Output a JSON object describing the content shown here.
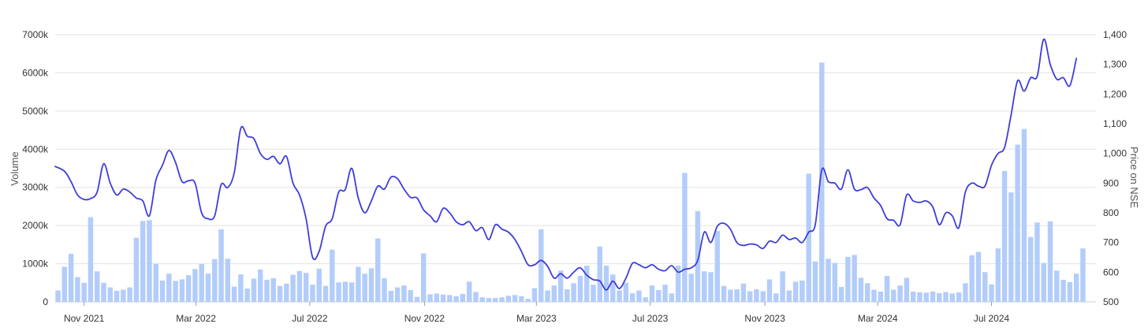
{
  "chart_data": {
    "type": "bar+line",
    "title": "",
    "xlabel": "",
    "ylabel_left": "Volume",
    "ylabel_right": "Price on NSE",
    "left_axis": {
      "min": 0,
      "max": 7000000,
      "ticks": [
        0,
        1000000,
        2000000,
        3000000,
        4000000,
        5000000,
        6000000,
        7000000
      ],
      "tick_labels": [
        "0",
        "1000k",
        "2000k",
        "3000k",
        "4000k",
        "5000k",
        "6000k",
        "7000k"
      ]
    },
    "right_axis": {
      "min": 500,
      "max": 1400,
      "ticks": [
        500,
        600,
        700,
        800,
        900,
        1000,
        1100,
        1200,
        1300,
        1400
      ],
      "tick_labels": [
        "500",
        "600",
        "700",
        "800",
        "900",
        "1,000",
        "1,100",
        "1,200",
        "1,300",
        "1,400"
      ]
    },
    "x_range": [
      "2021-10-01",
      "2024-10-21"
    ],
    "x_tick_labels": [
      {
        "date": "2021-11-01",
        "label": "Nov 2021"
      },
      {
        "date": "2022-03-01",
        "label": "Mar 2022"
      },
      {
        "date": "2022-07-01",
        "label": "Jul 2022"
      },
      {
        "date": "2022-11-01",
        "label": "Nov 2022"
      },
      {
        "date": "2023-03-01",
        "label": "Mar 2023"
      },
      {
        "date": "2023-07-01",
        "label": "Jul 2023"
      },
      {
        "date": "2023-11-01",
        "label": "Nov 2023"
      },
      {
        "date": "2024-03-01",
        "label": "Mar 2024"
      },
      {
        "date": "2024-07-01",
        "label": "Jul 2024"
      }
    ],
    "grid": true,
    "colors": {
      "volume": "#b3cdfa",
      "price": "#3f3ddb",
      "grid": "#e3e3e3"
    },
    "volume_series": {
      "name": "Volume",
      "start_date": "2021-10-04",
      "interval": "weekly",
      "values": [
        300000,
        920000,
        1260000,
        650000,
        500000,
        2220000,
        800000,
        500000,
        380000,
        290000,
        320000,
        380000,
        1680000,
        2120000,
        2140000,
        1000000,
        560000,
        740000,
        550000,
        590000,
        700000,
        860000,
        990000,
        740000,
        1120000,
        1900000,
        1130000,
        400000,
        720000,
        350000,
        610000,
        850000,
        580000,
        620000,
        420000,
        480000,
        710000,
        810000,
        760000,
        450000,
        870000,
        420000,
        1370000,
        510000,
        530000,
        510000,
        920000,
        740000,
        880000,
        1660000,
        620000,
        290000,
        380000,
        430000,
        310000,
        130000,
        1270000,
        200000,
        220000,
        190000,
        180000,
        150000,
        210000,
        530000,
        260000,
        120000,
        100000,
        100000,
        120000,
        160000,
        180000,
        150000,
        80000,
        360000,
        1900000,
        300000,
        430000,
        820000,
        330000,
        490000,
        680000,
        950000,
        450000,
        1450000,
        950000,
        720000,
        300000,
        500000,
        230000,
        300000,
        120000,
        430000,
        310000,
        450000,
        220000,
        950000,
        3380000,
        740000,
        2380000,
        800000,
        780000,
        1860000,
        420000,
        320000,
        330000,
        480000,
        280000,
        330000,
        280000,
        590000,
        220000,
        800000,
        300000,
        530000,
        560000,
        3360000,
        1060000,
        6270000,
        1130000,
        1020000,
        390000,
        1180000,
        1230000,
        630000,
        490000,
        320000,
        270000,
        680000,
        320000,
        430000,
        630000,
        270000,
        250000,
        240000,
        270000,
        230000,
        260000,
        220000,
        250000,
        490000,
        1220000,
        1310000,
        780000,
        460000,
        1400000,
        3430000,
        2870000,
        4120000,
        4530000,
        1700000,
        2080000,
        1020000,
        2110000,
        820000,
        580000,
        520000,
        740000,
        1400000
      ]
    },
    "price_series": {
      "name": "Price on NSE",
      "points": [
        [
          "2021-10-01",
          956
        ],
        [
          "2021-10-11",
          940
        ],
        [
          "2021-10-18",
          905
        ],
        [
          "2021-10-25",
          860
        ],
        [
          "2021-11-01",
          845
        ],
        [
          "2021-11-08",
          848
        ],
        [
          "2021-11-15",
          870
        ],
        [
          "2021-11-22",
          965
        ],
        [
          "2021-11-29",
          900
        ],
        [
          "2021-12-06",
          860
        ],
        [
          "2021-12-13",
          880
        ],
        [
          "2021-12-20",
          870
        ],
        [
          "2021-12-27",
          850
        ],
        [
          "2022-01-03",
          840
        ],
        [
          "2022-01-10",
          790
        ],
        [
          "2022-01-17",
          910
        ],
        [
          "2022-01-24",
          960
        ],
        [
          "2022-01-31",
          1010
        ],
        [
          "2022-02-07",
          970
        ],
        [
          "2022-02-14",
          905
        ],
        [
          "2022-02-21",
          908
        ],
        [
          "2022-02-28",
          900
        ],
        [
          "2022-03-07",
          800
        ],
        [
          "2022-03-14",
          780
        ],
        [
          "2022-03-21",
          790
        ],
        [
          "2022-03-28",
          895
        ],
        [
          "2022-04-04",
          885
        ],
        [
          "2022-04-11",
          935
        ],
        [
          "2022-04-18",
          1085
        ],
        [
          "2022-04-25",
          1058
        ],
        [
          "2022-05-02",
          1050
        ],
        [
          "2022-05-09",
          1000
        ],
        [
          "2022-05-16",
          980
        ],
        [
          "2022-05-23",
          990
        ],
        [
          "2022-05-30",
          965
        ],
        [
          "2022-06-06",
          990
        ],
        [
          "2022-06-13",
          900
        ],
        [
          "2022-06-20",
          860
        ],
        [
          "2022-06-27",
          780
        ],
        [
          "2022-07-04",
          650
        ],
        [
          "2022-07-11",
          670
        ],
        [
          "2022-07-18",
          755
        ],
        [
          "2022-07-25",
          780
        ],
        [
          "2022-08-01",
          870
        ],
        [
          "2022-08-08",
          878
        ],
        [
          "2022-08-15",
          950
        ],
        [
          "2022-08-22",
          850
        ],
        [
          "2022-08-29",
          800
        ],
        [
          "2022-09-05",
          840
        ],
        [
          "2022-09-12",
          890
        ],
        [
          "2022-09-19",
          880
        ],
        [
          "2022-09-26",
          920
        ],
        [
          "2022-10-03",
          915
        ],
        [
          "2022-10-10",
          880
        ],
        [
          "2022-10-17",
          852
        ],
        [
          "2022-10-24",
          850
        ],
        [
          "2022-10-31",
          810
        ],
        [
          "2022-11-07",
          790
        ],
        [
          "2022-11-14",
          770
        ],
        [
          "2022-11-21",
          815
        ],
        [
          "2022-11-28",
          800
        ],
        [
          "2022-12-05",
          770
        ],
        [
          "2022-12-12",
          760
        ],
        [
          "2022-12-19",
          770
        ],
        [
          "2022-12-26",
          740
        ],
        [
          "2023-01-02",
          750
        ],
        [
          "2023-01-09",
          710
        ],
        [
          "2023-01-16",
          760
        ],
        [
          "2023-01-23",
          745
        ],
        [
          "2023-01-30",
          735
        ],
        [
          "2023-02-06",
          710
        ],
        [
          "2023-02-13",
          670
        ],
        [
          "2023-02-20",
          625
        ],
        [
          "2023-02-27",
          625
        ],
        [
          "2023-03-06",
          640
        ],
        [
          "2023-03-13",
          620
        ],
        [
          "2023-03-20",
          580
        ],
        [
          "2023-03-27",
          595
        ],
        [
          "2023-04-03",
          580
        ],
        [
          "2023-04-10",
          600
        ],
        [
          "2023-04-17",
          615
        ],
        [
          "2023-04-24",
          590
        ],
        [
          "2023-05-01",
          575
        ],
        [
          "2023-05-08",
          570
        ],
        [
          "2023-05-15",
          540
        ],
        [
          "2023-05-22",
          570
        ],
        [
          "2023-05-29",
          545
        ],
        [
          "2023-06-05",
          580
        ],
        [
          "2023-06-12",
          630
        ],
        [
          "2023-06-19",
          625
        ],
        [
          "2023-06-26",
          615
        ],
        [
          "2023-07-03",
          625
        ],
        [
          "2023-07-10",
          610
        ],
        [
          "2023-07-17",
          605
        ],
        [
          "2023-07-24",
          622
        ],
        [
          "2023-07-31",
          600
        ],
        [
          "2023-08-07",
          610
        ],
        [
          "2023-08-14",
          615
        ],
        [
          "2023-08-21",
          640
        ],
        [
          "2023-08-28",
          735
        ],
        [
          "2023-09-04",
          700
        ],
        [
          "2023-09-11",
          755
        ],
        [
          "2023-09-18",
          765
        ],
        [
          "2023-09-25",
          745
        ],
        [
          "2023-10-02",
          700
        ],
        [
          "2023-10-09",
          690
        ],
        [
          "2023-10-16",
          695
        ],
        [
          "2023-10-23",
          692
        ],
        [
          "2023-10-30",
          680
        ],
        [
          "2023-11-06",
          705
        ],
        [
          "2023-11-13",
          700
        ],
        [
          "2023-11-20",
          725
        ],
        [
          "2023-11-27",
          710
        ],
        [
          "2023-12-04",
          715
        ],
        [
          "2023-12-11",
          700
        ],
        [
          "2023-12-18",
          735
        ],
        [
          "2023-12-25",
          760
        ],
        [
          "2024-01-01",
          945
        ],
        [
          "2024-01-08",
          905
        ],
        [
          "2024-01-15",
          900
        ],
        [
          "2024-01-22",
          880
        ],
        [
          "2024-01-29",
          945
        ],
        [
          "2024-02-05",
          880
        ],
        [
          "2024-02-12",
          878
        ],
        [
          "2024-02-19",
          885
        ],
        [
          "2024-02-26",
          850
        ],
        [
          "2024-03-04",
          825
        ],
        [
          "2024-03-11",
          780
        ],
        [
          "2024-03-18",
          775
        ],
        [
          "2024-03-25",
          760
        ],
        [
          "2024-04-01",
          860
        ],
        [
          "2024-04-08",
          840
        ],
        [
          "2024-04-15",
          835
        ],
        [
          "2024-04-22",
          840
        ],
        [
          "2024-04-29",
          820
        ],
        [
          "2024-05-06",
          760
        ],
        [
          "2024-05-13",
          800
        ],
        [
          "2024-05-20",
          790
        ],
        [
          "2024-05-27",
          750
        ],
        [
          "2024-06-03",
          870
        ],
        [
          "2024-06-10",
          900
        ],
        [
          "2024-06-17",
          890
        ],
        [
          "2024-06-24",
          890
        ],
        [
          "2024-07-01",
          960
        ],
        [
          "2024-07-08",
          1000
        ],
        [
          "2024-07-15",
          1020
        ],
        [
          "2024-07-22",
          1130
        ],
        [
          "2024-07-29",
          1245
        ],
        [
          "2024-08-05",
          1210
        ],
        [
          "2024-08-12",
          1255
        ],
        [
          "2024-08-19",
          1260
        ],
        [
          "2024-08-26",
          1385
        ],
        [
          "2024-09-02",
          1300
        ],
        [
          "2024-09-09",
          1250
        ],
        [
          "2024-09-16",
          1255
        ],
        [
          "2024-09-23",
          1228
        ],
        [
          "2024-09-30",
          1320
        ]
      ]
    }
  }
}
